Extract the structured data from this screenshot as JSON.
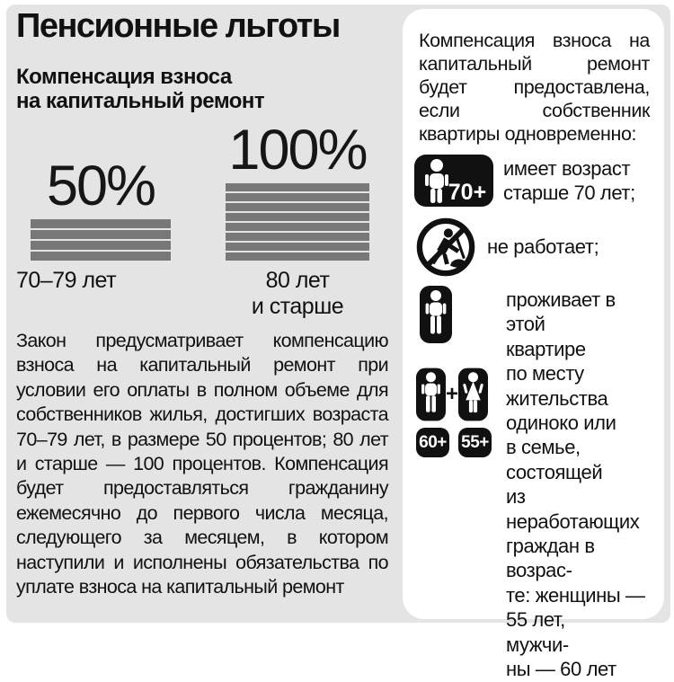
{
  "colors": {
    "background": "#e4e4e4",
    "panel": "#ffffff",
    "bar": "#787878",
    "ink": "#111111"
  },
  "header": {
    "title": "Пенсионные льготы",
    "subtitle": "Компенсация взноса\nна капитальный ремонт"
  },
  "chart_data": {
    "type": "bar",
    "title": "Компенсация взноса на капитальный ремонт",
    "categories": [
      "70–79 лет",
      "80 лет\nи старше"
    ],
    "values": [
      50,
      100
    ],
    "unit": "%",
    "value_labels": [
      "50%",
      "100%"
    ],
    "bar_segments": [
      4,
      8
    ],
    "bar_color": "#787878",
    "legend": "none",
    "axes": "none"
  },
  "left_paragraph": "Закон предусматривает компенсацию взноса на капитальный ремонт при условии его оплаты в полном объеме для собственников жилья, достигших возраста 70–79 лет, в размере 50 про­центов; 80 лет и старше — 100 процен­тов. Компенсация будет предостав­ляться гражданину ежемесячно до пер­вого числа месяца, следующего за месяцем, в котором наступили и исполнены обязательства по уплате взноса на капитальный ремонт",
  "right_panel": {
    "intro": "Компенсация взноса на капитальный ремонт будет предоставлена, если собственник квартиры одновременно:",
    "items": [
      {
        "icon": "man-70plus-icon",
        "badge": "70+",
        "text": "имеет возраст\nстарше 70 лет;"
      },
      {
        "icon": "no-work-icon",
        "text": "не работает;"
      },
      {
        "icon": "resident-man-icon",
        "text": "проживает в этой\nквартире\nпо месту\nжительства"
      },
      {
        "icon": "man-plus-woman-icon",
        "plus": "+",
        "badges": [
          "60+",
          "55+"
        ],
        "text": "одиноко или\nв семье,\nсостоящей\nиз неработающих\nграждан в возрас-\nте: женщины —\n55 лет,\nмужчи-\nны — 60 лет"
      }
    ]
  }
}
